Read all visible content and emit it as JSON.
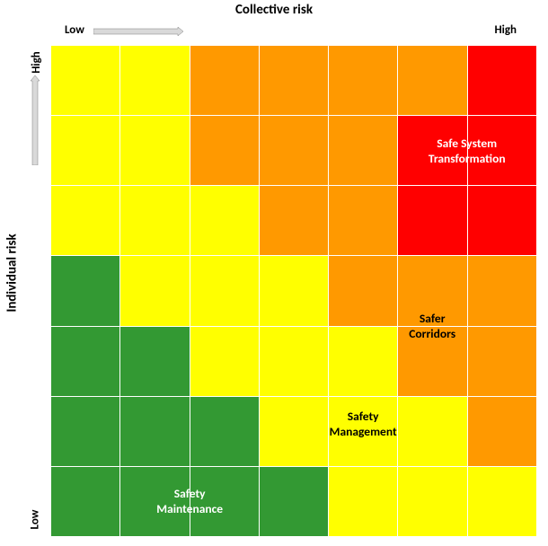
{
  "title_x": "Collective risk",
  "title_y": "Individual risk",
  "axis": {
    "low": "Low",
    "high": "High"
  },
  "colors": {
    "green": "#339933",
    "yellow": "#ffff00",
    "orange": "#ff9900",
    "red": "#ff0000",
    "arrow_fill": "#d9d9d9",
    "arrow_stroke": "#7f7f7f",
    "white": "#ffffff"
  },
  "grid": {
    "rows": 7,
    "cols": 7,
    "cells": [
      [
        "yellow",
        "yellow",
        "orange",
        "orange",
        "orange",
        "orange",
        "red"
      ],
      [
        "yellow",
        "yellow",
        "orange",
        "orange",
        "orange",
        "red",
        "red"
      ],
      [
        "yellow",
        "yellow",
        "yellow",
        "orange",
        "orange",
        "red",
        "red"
      ],
      [
        "green",
        "yellow",
        "yellow",
        "yellow",
        "orange",
        "orange",
        "orange"
      ],
      [
        "green",
        "green",
        "yellow",
        "yellow",
        "yellow",
        "orange",
        "orange"
      ],
      [
        "green",
        "green",
        "green",
        "yellow",
        "yellow",
        "yellow",
        "orange"
      ],
      [
        "green",
        "green",
        "green",
        "green",
        "yellow",
        "yellow",
        "yellow"
      ]
    ]
  },
  "labels": {
    "safe_system": {
      "text": "Safe System\nTransformation",
      "color": "white",
      "row": 1,
      "col": 5.5
    },
    "safer_corridors": {
      "text": "Safer\nCorridors",
      "color": "black",
      "row": 3.5,
      "col": 5.0
    },
    "safety_mgmt": {
      "text": "Safety\nManagement",
      "color": "black",
      "row": 4.9,
      "col": 4.0
    },
    "safety_maint": {
      "text": "Safety\nMaintenance",
      "color": "white",
      "row": 6.0,
      "col": 1.5
    }
  },
  "fontsize": {
    "title": 15,
    "axis_end": 13,
    "label": 13.5
  }
}
